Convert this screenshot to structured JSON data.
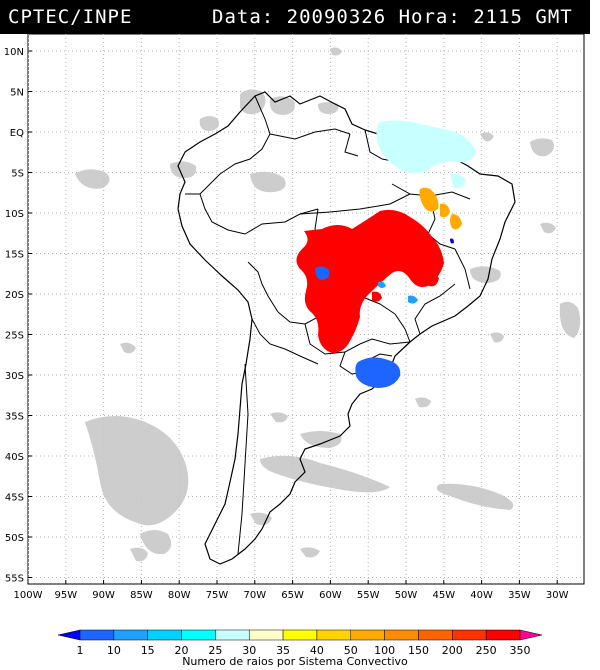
{
  "header": {
    "source": "CPTEC/INPE",
    "datetime": "Data: 20090326 Hora: 2115 GMT"
  },
  "lat_labels": [
    "10N",
    "5N",
    "EQ",
    "5S",
    "10S",
    "15S",
    "20S",
    "25S",
    "30S",
    "35S",
    "40S",
    "45S",
    "50S",
    "55S"
  ],
  "lon_labels": [
    "100W",
    "95W",
    "90W",
    "85W",
    "80W",
    "75W",
    "70W",
    "65W",
    "60W",
    "55W",
    "50W",
    "45W",
    "40W",
    "35W",
    "30W"
  ],
  "colorbar": {
    "values": [
      "1",
      "10",
      "15",
      "20",
      "25",
      "30",
      "35",
      "40",
      "50",
      "100",
      "150",
      "200",
      "250",
      "350"
    ],
    "colors": [
      "#0000ff",
      "#1e64ff",
      "#1ea0ff",
      "#00d2ff",
      "#00ffff",
      "#c8ffff",
      "#ffffc8",
      "#ffff00",
      "#ffd200",
      "#ffaa00",
      "#ff8c00",
      "#ff6400",
      "#ff3200",
      "#ff0000",
      "#ff0090"
    ],
    "caption": "Numero de raios por Sistema Convectivo"
  },
  "map": {
    "cloud_color": "#c8c8c8",
    "border_color": "#000000",
    "grid_color": "#b4b4b4"
  }
}
